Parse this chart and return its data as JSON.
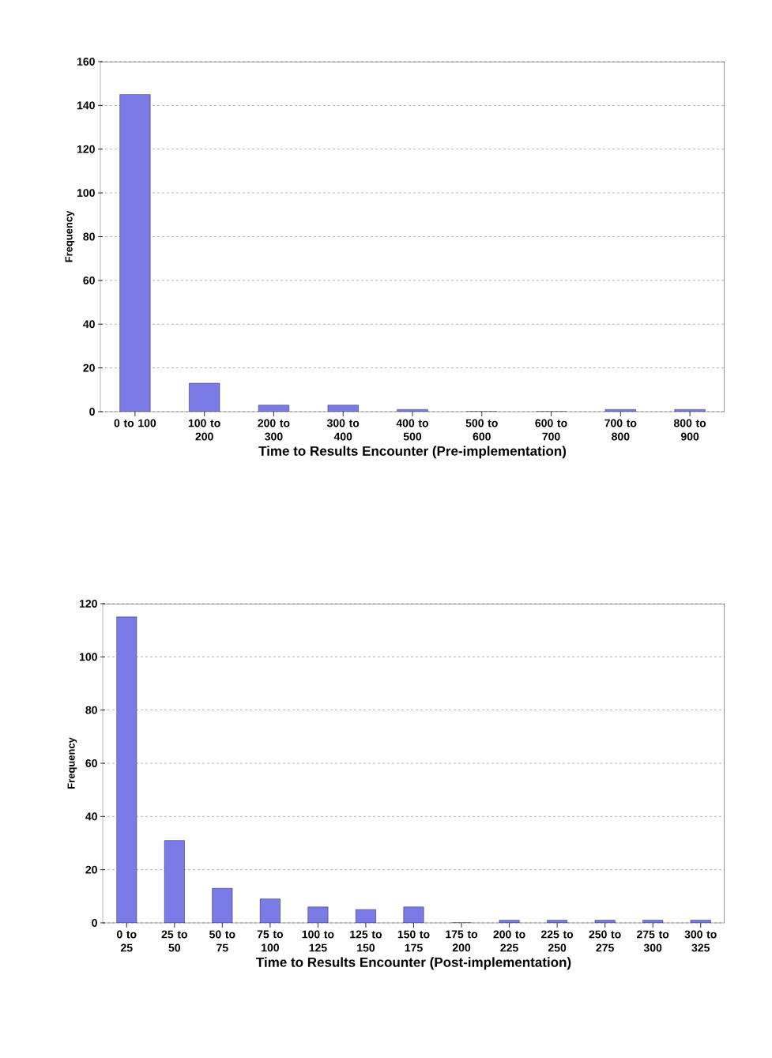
{
  "chart_data": [
    {
      "type": "bar",
      "xlabel": "Time to Results Encounter (Pre-implementation)",
      "ylabel": "Frequency",
      "categories": [
        "0 to 100",
        "100 to 200",
        "200 to 300",
        "300 to 400",
        "400 to 500",
        "500 to 600",
        "600 to 700",
        "700 to 800",
        "800 to 900"
      ],
      "values": [
        145,
        13,
        3,
        3,
        1,
        0,
        0,
        1,
        1
      ],
      "color": "#7b7be8",
      "ylim": [
        0,
        160
      ],
      "yticks": [
        0,
        20,
        40,
        60,
        80,
        100,
        120,
        140,
        160
      ],
      "grid": "y"
    },
    {
      "type": "bar",
      "xlabel": "Time to Results Encounter (Post-implementation)",
      "ylabel": "Frequency",
      "categories": [
        "0 to 25",
        "25 to 50",
        "50 to 75",
        "75 to 100",
        "100 to 125",
        "125 to 150",
        "150 to 175",
        "175 to 200",
        "200 to 225",
        "225 to 250",
        "250 to 275",
        "275 to 300",
        "300 to 325"
      ],
      "values": [
        115,
        31,
        13,
        9,
        6,
        5,
        6,
        0,
        1,
        1,
        1,
        1,
        1
      ],
      "color": "#7b7be8",
      "ylim": [
        0,
        120
      ],
      "yticks": [
        0,
        20,
        40,
        60,
        80,
        100,
        120
      ],
      "grid": "y"
    }
  ]
}
